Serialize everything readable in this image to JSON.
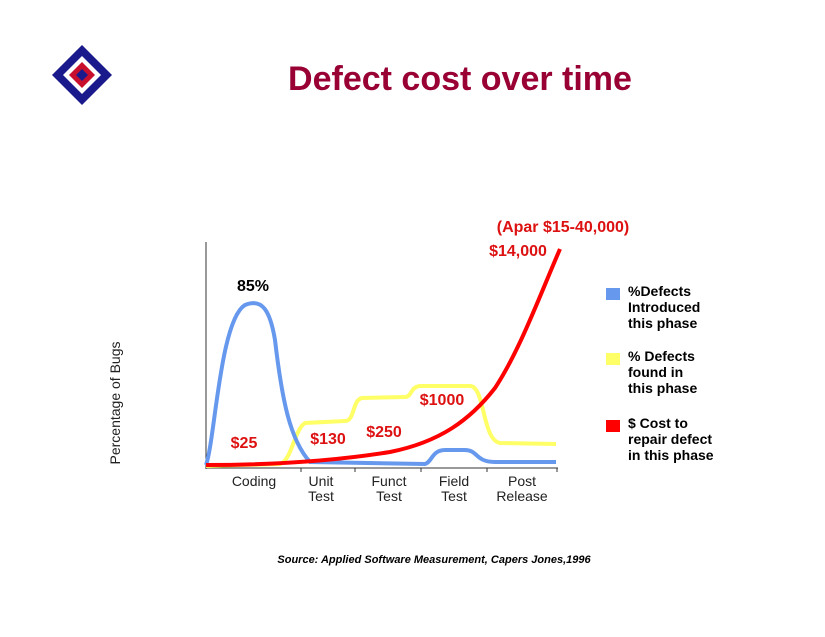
{
  "header": {
    "title": "Defect cost over time"
  },
  "chart": {
    "y_axis_label": "Percentage of Bugs",
    "categories": [
      [
        "Coding"
      ],
      [
        "Unit",
        "Test"
      ],
      [
        "Funct",
        "Test"
      ],
      [
        "Field",
        "Test"
      ],
      [
        "Post",
        "Release"
      ]
    ],
    "annotations": [
      "85%",
      "$25",
      "$130",
      "$250",
      "$1000",
      "$14,000",
      "(Apar $15-40,000)"
    ],
    "legend": [
      {
        "lines": [
          "%Defects",
          "Introduced",
          "this phase"
        ],
        "color": "#6699ee"
      },
      {
        "lines": [
          "% Defects",
          "found in",
          "this phase"
        ],
        "color": "#ffff66"
      },
      {
        "lines": [
          "$ Cost to",
          "repair defect",
          "in this phase"
        ],
        "color": "#ff0000"
      }
    ]
  },
  "footer": {
    "source": "Source:  Applied Software Measurement, Capers Jones,1996"
  }
}
